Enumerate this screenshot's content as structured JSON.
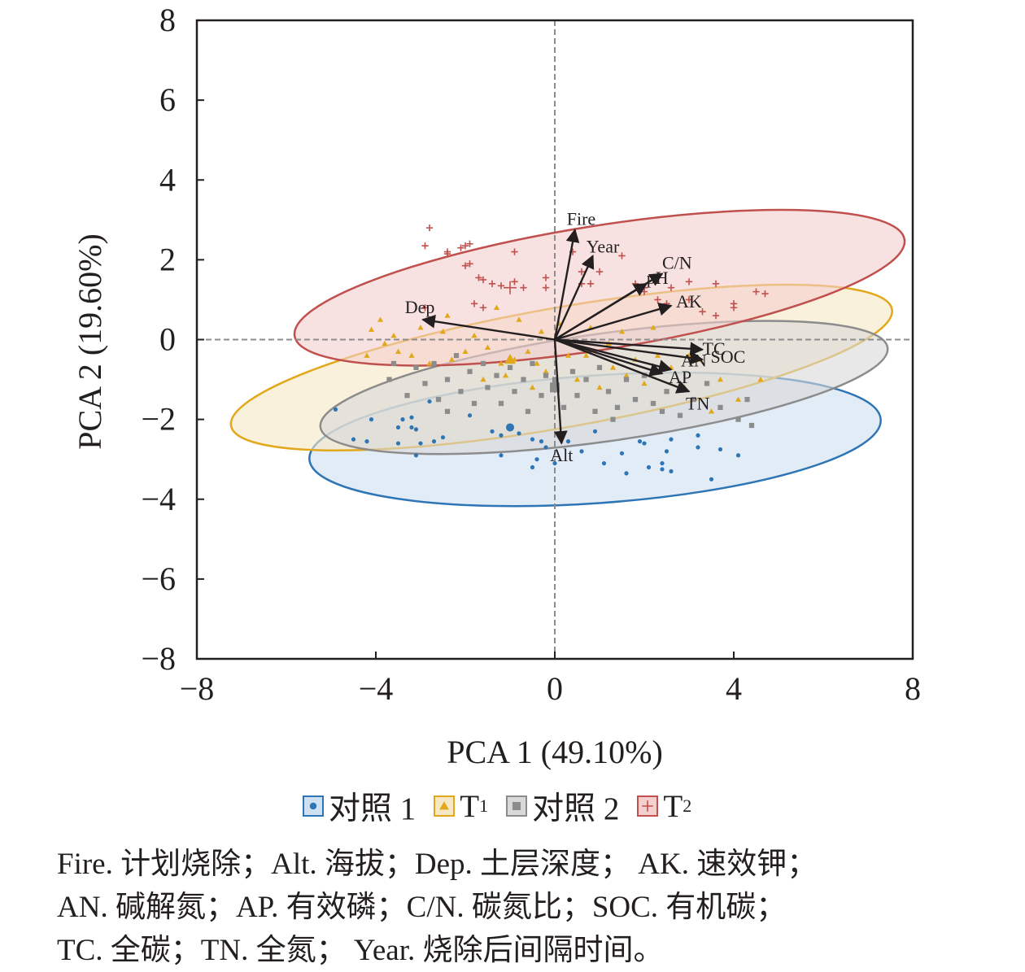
{
  "chart_data": {
    "type": "scatter",
    "subtype": "pca-biplot",
    "xlabel": "PCA 1 (49.10%)",
    "ylabel": "PCA 2 (19.60%)",
    "xlim": [
      -8,
      8
    ],
    "ylim": [
      -8,
      8
    ],
    "xticks": [
      "−8",
      "−4",
      "0",
      "4",
      "8"
    ],
    "yticks": [
      "8",
      "6",
      "4",
      "2",
      "0",
      "−2",
      "−4",
      "−6",
      "−8"
    ],
    "reference_lines": {
      "x": 0,
      "y": 0,
      "style": "dashed"
    },
    "groups": [
      {
        "name": "对照 1",
        "marker": "circle",
        "color": "#2e75b6",
        "fill": "#cfe0f1",
        "ellipse": {
          "cx": 0.9,
          "cy": -2.5,
          "rx": 6.4,
          "ry": 1.6,
          "angle_deg": -4
        },
        "centroid": [
          -1.0,
          -2.2
        ],
        "points": [
          [
            -4.9,
            -1.75
          ],
          [
            -4.1,
            -2.0
          ],
          [
            -4.2,
            -2.55
          ],
          [
            -3.5,
            -2.6
          ],
          [
            -3.5,
            -2.2
          ],
          [
            -3.0,
            -2.6
          ],
          [
            -3.2,
            -1.95
          ],
          [
            -3.1,
            -2.25
          ],
          [
            -2.5,
            -2.45
          ],
          [
            -1.9,
            -1.9
          ],
          [
            -1.4,
            -2.3
          ],
          [
            -0.8,
            -2.35
          ],
          [
            -1.2,
            -2.4
          ],
          [
            -0.5,
            -2.5
          ],
          [
            -0.2,
            -2.7
          ],
          [
            -0.3,
            -2.55
          ],
          [
            -0.4,
            -3.0
          ],
          [
            -1.2,
            -2.9
          ],
          [
            -3.1,
            -2.9
          ],
          [
            -4.5,
            -2.5
          ],
          [
            -2.8,
            -1.55
          ],
          [
            -3.4,
            -2.0
          ],
          [
            0.3,
            -2.55
          ],
          [
            0.6,
            -2.8
          ],
          [
            0.9,
            -2.3
          ],
          [
            1.1,
            -3.1
          ],
          [
            1.6,
            -3.35
          ],
          [
            1.5,
            -2.85
          ],
          [
            2.0,
            -2.6
          ],
          [
            2.1,
            -3.2
          ],
          [
            2.4,
            -3.1
          ],
          [
            2.5,
            -2.8
          ],
          [
            2.4,
            -3.25
          ],
          [
            2.6,
            -2.5
          ],
          [
            2.6,
            -3.3
          ],
          [
            3.2,
            -2.7
          ],
          [
            3.2,
            -2.4
          ],
          [
            3.5,
            -3.5
          ],
          [
            3.7,
            -2.75
          ],
          [
            4.1,
            -2.9
          ],
          [
            1.9,
            -2.55
          ],
          [
            0.0,
            -3.1
          ],
          [
            -2.7,
            -2.55
          ],
          [
            -3.2,
            -2.2
          ],
          [
            -0.5,
            -3.2
          ]
        ]
      },
      {
        "name": "T1",
        "marker": "triangle",
        "color": "#e2a81b",
        "fill": "#f6e8c4",
        "ellipse": {
          "cx": 0.15,
          "cy": -0.7,
          "rx": 7.5,
          "ry": 1.5,
          "angle_deg": -10
        },
        "centroid": [
          -1.0,
          -0.5
        ],
        "points": [
          [
            -4.2,
            -0.4
          ],
          [
            -4.1,
            0.25
          ],
          [
            -3.8,
            -0.1
          ],
          [
            -3.6,
            0.1
          ],
          [
            -3.5,
            -0.3
          ],
          [
            -3.2,
            -0.4
          ],
          [
            -3.0,
            0.3
          ],
          [
            -2.8,
            -0.6
          ],
          [
            -2.5,
            0.2
          ],
          [
            -2.3,
            -0.5
          ],
          [
            -2.4,
            0.6
          ],
          [
            -2.0,
            -0.3
          ],
          [
            -1.8,
            0.1
          ],
          [
            -1.5,
            -0.2
          ],
          [
            -1.3,
            0.8
          ],
          [
            -1.2,
            -0.6
          ],
          [
            -1.1,
            -0.9
          ],
          [
            -0.9,
            -0.5
          ],
          [
            -0.8,
            0.5
          ],
          [
            -0.6,
            -0.3
          ],
          [
            -0.5,
            -1.2
          ],
          [
            -0.4,
            -0.6
          ],
          [
            -0.3,
            0.2
          ],
          [
            -0.2,
            -0.8
          ],
          [
            0.3,
            -0.4
          ],
          [
            0.5,
            -1.0
          ],
          [
            0.7,
            -0.4
          ],
          [
            0.8,
            0.3
          ],
          [
            1.0,
            -1.2
          ],
          [
            1.3,
            -0.7
          ],
          [
            1.5,
            0.2
          ],
          [
            1.6,
            -0.9
          ],
          [
            1.8,
            -0.5
          ],
          [
            2.0,
            -1.1
          ],
          [
            2.2,
            0.3
          ],
          [
            2.3,
            -0.4
          ],
          [
            2.5,
            -1.3
          ],
          [
            2.6,
            -0.7
          ],
          [
            2.9,
            -1.2
          ],
          [
            3.2,
            -0.5
          ],
          [
            3.5,
            -1.8
          ],
          [
            3.7,
            -1.0
          ],
          [
            4.1,
            -1.5
          ],
          [
            4.6,
            -1.0
          ],
          [
            -3.9,
            0.5
          ],
          [
            -1.6,
            -1.0
          ],
          [
            0.1,
            0.4
          ],
          [
            1.2,
            -0.1
          ],
          [
            3.0,
            -0.4
          ]
        ]
      },
      {
        "name": "对照 2",
        "marker": "square",
        "color": "#8c8c8c",
        "fill": "#d9d9d9",
        "ellipse": {
          "cx": 1.1,
          "cy": -1.2,
          "rx": 6.4,
          "ry": 1.35,
          "angle_deg": -8
        },
        "centroid": [
          0.0,
          -1.2
        ],
        "points": [
          [
            -3.7,
            -1.0
          ],
          [
            -3.6,
            -0.6
          ],
          [
            -3.3,
            -1.4
          ],
          [
            -3.1,
            -0.7
          ],
          [
            -2.9,
            -1.1
          ],
          [
            -2.7,
            -0.6
          ],
          [
            -2.6,
            -1.5
          ],
          [
            -2.4,
            -1.0
          ],
          [
            -2.2,
            -0.4
          ],
          [
            -2.1,
            -1.3
          ],
          [
            -1.9,
            -0.8
          ],
          [
            -1.8,
            -1.6
          ],
          [
            -1.6,
            -0.6
          ],
          [
            -1.5,
            -1.2
          ],
          [
            -1.3,
            -0.9
          ],
          [
            -1.2,
            -1.6
          ],
          [
            -1.0,
            -0.7
          ],
          [
            -0.9,
            -1.3
          ],
          [
            -0.7,
            -1.0
          ],
          [
            -0.6,
            -1.8
          ],
          [
            -0.5,
            -0.6
          ],
          [
            -0.3,
            -1.4
          ],
          [
            -0.2,
            -0.9
          ],
          [
            0.0,
            -1.1
          ],
          [
            0.2,
            -1.7
          ],
          [
            0.4,
            -0.8
          ],
          [
            0.5,
            -1.4
          ],
          [
            0.7,
            -1.0
          ],
          [
            0.9,
            -1.8
          ],
          [
            1.0,
            -0.7
          ],
          [
            1.2,
            -1.3
          ],
          [
            1.4,
            -1.7
          ],
          [
            1.6,
            -1.0
          ],
          [
            1.8,
            -1.5
          ],
          [
            2.0,
            -0.9
          ],
          [
            2.2,
            -1.6
          ],
          [
            2.5,
            -1.3
          ],
          [
            2.8,
            -1.9
          ],
          [
            3.1,
            -1.5
          ],
          [
            3.4,
            -1.1
          ],
          [
            3.7,
            -1.7
          ],
          [
            4.1,
            -2.0
          ],
          [
            4.3,
            -1.5
          ],
          [
            4.4,
            -2.15
          ],
          [
            -2.4,
            -1.8
          ],
          [
            1.3,
            -2.0
          ],
          [
            0.0,
            -1.0
          ],
          [
            2.4,
            -1.8
          ]
        ]
      },
      {
        "name": "T2",
        "marker": "cross",
        "color": "#c0504d",
        "fill": "#f3cfcd",
        "ellipse": {
          "cx": 1.0,
          "cy": 1.3,
          "rx": 6.9,
          "ry": 1.55,
          "angle_deg": -9
        },
        "centroid": [
          -1.0,
          1.3
        ],
        "points": [
          [
            -2.8,
            2.8
          ],
          [
            -2.9,
            2.35
          ],
          [
            -2.4,
            2.2
          ],
          [
            -2.4,
            2.15
          ],
          [
            -2.1,
            2.3
          ],
          [
            -2.0,
            2.35
          ],
          [
            -1.9,
            2.4
          ],
          [
            -2.0,
            1.85
          ],
          [
            -1.9,
            1.9
          ],
          [
            -1.7,
            1.55
          ],
          [
            -1.6,
            1.5
          ],
          [
            -1.4,
            1.4
          ],
          [
            -1.2,
            1.35
          ],
          [
            -0.9,
            1.45
          ],
          [
            -0.7,
            1.3
          ],
          [
            -0.9,
            2.2
          ],
          [
            -0.2,
            1.55
          ],
          [
            -0.2,
            1.3
          ],
          [
            0.4,
            2.2
          ],
          [
            0.6,
            1.7
          ],
          [
            0.6,
            1.4
          ],
          [
            0.8,
            1.4
          ],
          [
            1.0,
            1.7
          ],
          [
            1.5,
            2.1
          ],
          [
            2.0,
            1.3
          ],
          [
            2.0,
            1.2
          ],
          [
            2.3,
            1.0
          ],
          [
            2.6,
            1.3
          ],
          [
            3.0,
            1.45
          ],
          [
            3.0,
            1.0
          ],
          [
            3.3,
            0.7
          ],
          [
            3.6,
            0.6
          ],
          [
            3.6,
            1.4
          ],
          [
            4.0,
            0.8
          ],
          [
            4.0,
            0.9
          ],
          [
            4.5,
            1.2
          ],
          [
            4.7,
            1.15
          ],
          [
            -1.8,
            0.9
          ],
          [
            -1.6,
            0.8
          ],
          [
            -2.9,
            0.8
          ],
          [
            1.8,
            1.4
          ],
          [
            2.5,
            0.9
          ]
        ]
      }
    ],
    "vectors": [
      {
        "label": "Fire",
        "x": 0.45,
        "y": 2.75
      },
      {
        "label": "Year",
        "x": 0.85,
        "y": 2.1
      },
      {
        "label": "C/N",
        "x": 2.4,
        "y": 1.65
      },
      {
        "label": "pH",
        "x": 2.05,
        "y": 1.4
      },
      {
        "label": "AK",
        "x": 2.6,
        "y": 0.85
      },
      {
        "label": "Dep",
        "x": -2.95,
        "y": 0.5
      },
      {
        "label": "TC",
        "x": 3.3,
        "y": -0.25
      },
      {
        "label": "SOC",
        "x": 3.3,
        "y": -0.5
      },
      {
        "label": "AN",
        "x": 2.6,
        "y": -0.75
      },
      {
        "label": "AP",
        "x": 2.4,
        "y": -0.85
      },
      {
        "label": "TN",
        "x": 3.0,
        "y": -1.3
      },
      {
        "label": "Alt",
        "x": 0.15,
        "y": -2.6
      }
    ]
  },
  "legend": {
    "items": [
      {
        "prefix": "对照 1",
        "sub": "",
        "marker": "circle",
        "color": "#2e75b6",
        "fill": "#cfe0f1"
      },
      {
        "prefix": "T",
        "sub": "1",
        "marker": "triangle",
        "color": "#e2a81b",
        "fill": "#f6e8c4"
      },
      {
        "prefix": "对照 2",
        "sub": "",
        "marker": "square",
        "color": "#8c8c8c",
        "fill": "#d9d9d9"
      },
      {
        "prefix": "T",
        "sub": "2",
        "marker": "cross",
        "color": "#c0504d",
        "fill": "#f3cfcd"
      }
    ]
  },
  "caption": {
    "lines": [
      "Fire. 计划烧除；Alt. 海拔；Dep. 土层深度； AK. 速效钾；",
      "AN. 碱解氮；AP. 有效磷；C/N. 碳氮比；SOC. 有机碳；",
      "TC. 全碳；TN. 全氮； Year. 烧除后间隔时间。"
    ]
  }
}
